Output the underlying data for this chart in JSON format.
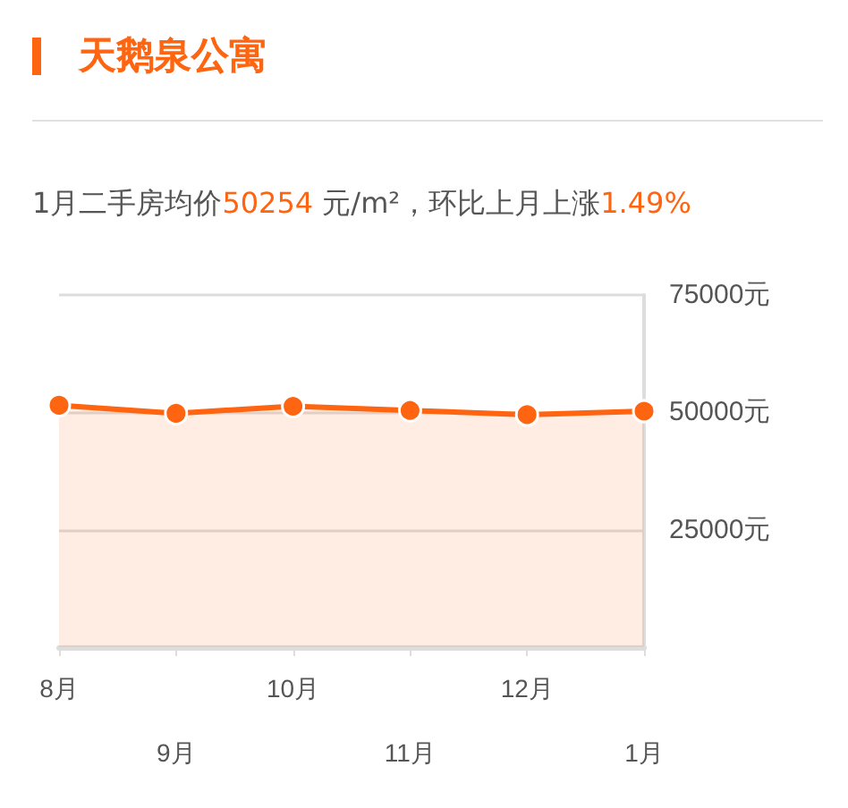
{
  "chart_data": {
    "type": "area",
    "title": "天鹅泉公寓",
    "subtitle": "1月二手房均价50254 元/m²，环比上月上涨1.49%",
    "categories": [
      "8月",
      "9月",
      "10月",
      "11月",
      "12月",
      "1月"
    ],
    "series": [
      {
        "color": "#ff6410",
        "values": [
          51500,
          49800,
          51300,
          50400,
          49500,
          50254
        ]
      }
    ],
    "ylim": [
      0,
      75000
    ],
    "yticks": [
      {
        "value": 0,
        "label": null
      },
      {
        "value": 25000,
        "label": "25000元"
      },
      {
        "value": 50000,
        "label": "50000元"
      },
      {
        "value": 75000,
        "label": "75000元"
      }
    ],
    "grid": "y",
    "marker": "circle",
    "line_style": "solid"
  }
}
